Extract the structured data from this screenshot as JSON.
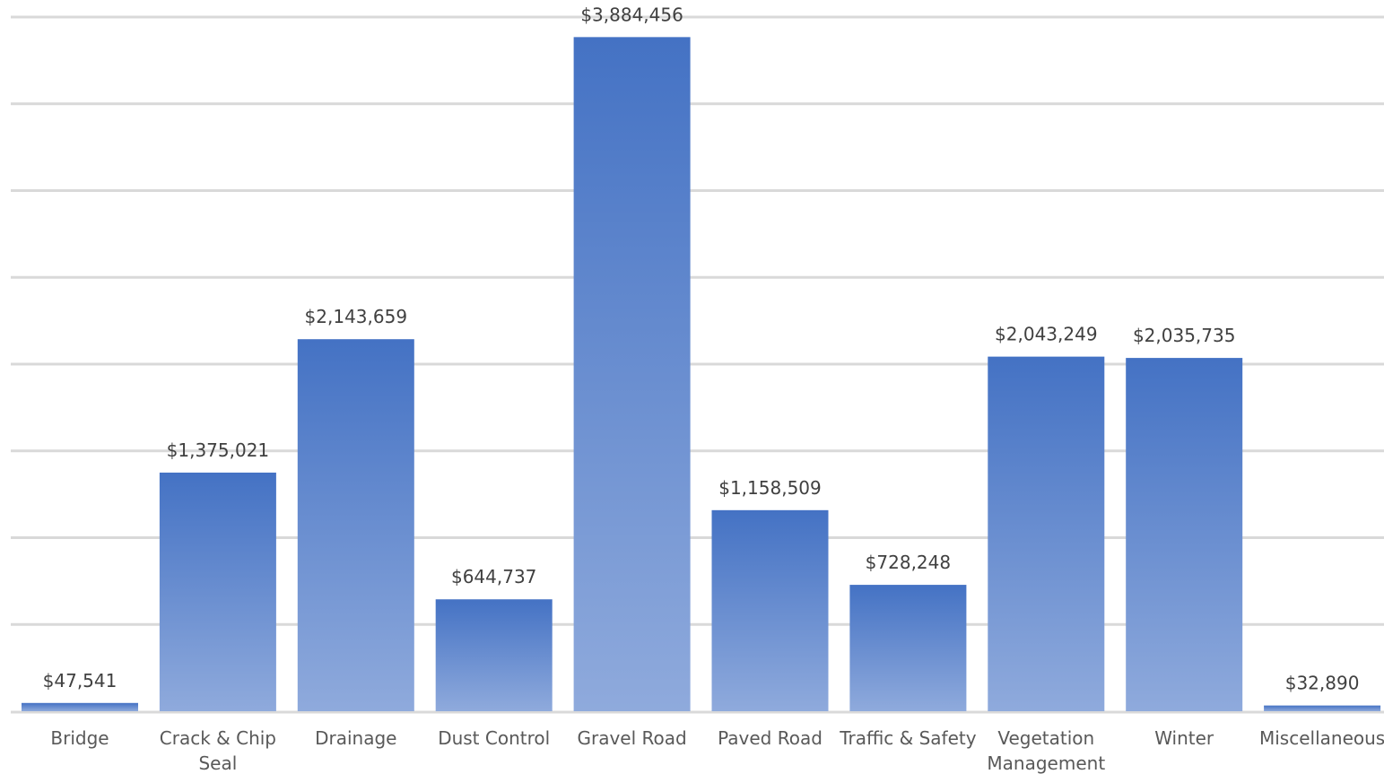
{
  "chart_data": {
    "type": "bar",
    "categories": [
      [
        "Bridge"
      ],
      [
        "Crack & Chip",
        "Seal"
      ],
      [
        "Drainage"
      ],
      [
        "Dust Control"
      ],
      [
        "Gravel Road"
      ],
      [
        "Paved Road"
      ],
      [
        "Traffic & Safety"
      ],
      [
        "Vegetation",
        "Management"
      ],
      [
        "Winter"
      ],
      [
        "Miscellaneous"
      ]
    ],
    "values": [
      47541,
      1375021,
      2143659,
      644737,
      3884456,
      1158509,
      728248,
      2043249,
      2035735,
      32890
    ],
    "data_labels": [
      "$47,541",
      "$1,375,021",
      "$2,143,659",
      "$644,737",
      "$3,884,456",
      "$1,158,509",
      "$728,248",
      "$2,043,249",
      "$2,035,735",
      "$32,890"
    ],
    "ylim": [
      0,
      4000000
    ],
    "grid": true,
    "legend": "none",
    "colors": {
      "bar_top": "#4472c4",
      "bar_bottom": "#8faadc",
      "grid": "#d9d9d9",
      "label": "#404040",
      "tick": "#595959"
    }
  }
}
